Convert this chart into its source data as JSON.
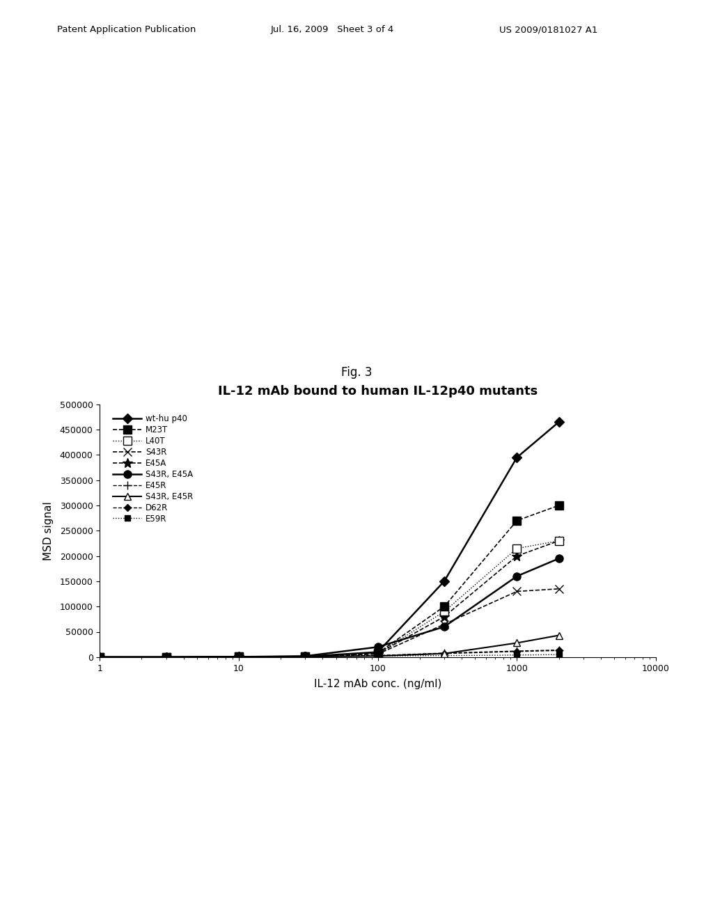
{
  "title": "IL-12 mAb bound to human IL-12p40 mutants",
  "xlabel": "IL-12 mAb conc. (ng/ml)",
  "ylabel": "MSD signal",
  "fig_label": "Fig. 3",
  "header_left": "Patent Application Publication",
  "header_mid": "Jul. 16, 2009   Sheet 3 of 4",
  "header_right": "US 2009/0181027 A1",
  "xlim": [
    1,
    10000
  ],
  "ylim": [
    0,
    500000
  ],
  "yticks": [
    0,
    50000,
    100000,
    150000,
    200000,
    250000,
    300000,
    350000,
    400000,
    450000,
    500000
  ],
  "series": [
    {
      "label": "wt-hu p40",
      "x": [
        1,
        3,
        10,
        30,
        100,
        300,
        1000,
        2000
      ],
      "y": [
        0,
        0,
        500,
        1000,
        10000,
        150000,
        395000,
        465000
      ],
      "color": "black",
      "marker": "D",
      "markersize": 7,
      "linewidth": 1.8,
      "linestyle": "-",
      "markerfacecolor": "black",
      "zorder": 10
    },
    {
      "label": "M23T",
      "x": [
        1,
        3,
        10,
        30,
        100,
        300,
        1000,
        2000
      ],
      "y": [
        0,
        0,
        500,
        1000,
        8000,
        100000,
        270000,
        300000
      ],
      "color": "black",
      "marker": "s",
      "markersize": 8,
      "linewidth": 1.2,
      "linestyle": "--",
      "markerfacecolor": "black",
      "zorder": 8
    },
    {
      "label": "L40T",
      "x": [
        1,
        3,
        10,
        30,
        100,
        300,
        1000,
        2000
      ],
      "y": [
        0,
        0,
        500,
        1000,
        7000,
        90000,
        215000,
        230000
      ],
      "color": "black",
      "marker": "s",
      "markersize": 8,
      "linewidth": 1.0,
      "linestyle": ":",
      "markerfacecolor": "white",
      "zorder": 7
    },
    {
      "label": "S43R",
      "x": [
        1,
        3,
        10,
        30,
        100,
        300,
        1000,
        2000
      ],
      "y": [
        0,
        0,
        500,
        1000,
        6000,
        65000,
        130000,
        135000
      ],
      "color": "black",
      "marker": "x",
      "markersize": 8,
      "linewidth": 1.2,
      "linestyle": "--",
      "markerfacecolor": "black",
      "zorder": 6
    },
    {
      "label": "E45A",
      "x": [
        1,
        3,
        10,
        30,
        100,
        300,
        1000,
        2000
      ],
      "y": [
        0,
        0,
        500,
        1000,
        7000,
        80000,
        200000,
        230000
      ],
      "color": "black",
      "marker": "*",
      "markersize": 10,
      "linewidth": 1.2,
      "linestyle": "--",
      "markerfacecolor": "black",
      "zorder": 6
    },
    {
      "label": "S43R, E45A",
      "x": [
        1,
        3,
        10,
        30,
        100,
        300,
        1000,
        2000
      ],
      "y": [
        0,
        0,
        500,
        2000,
        20000,
        60000,
        160000,
        195000
      ],
      "color": "black",
      "marker": "o",
      "markersize": 8,
      "linewidth": 1.8,
      "linestyle": "-",
      "markerfacecolor": "black",
      "zorder": 9
    },
    {
      "label": "E45R",
      "x": [
        1,
        3,
        10,
        30,
        100,
        300,
        1000,
        2000
      ],
      "y": [
        0,
        0,
        500,
        1000,
        3000,
        8000,
        12000,
        14000
      ],
      "color": "black",
      "marker": "+",
      "markersize": 8,
      "linewidth": 1.0,
      "linestyle": "--",
      "markerfacecolor": "black",
      "zorder": 5
    },
    {
      "label": "S43R, E45R",
      "x": [
        1,
        3,
        10,
        30,
        100,
        300,
        1000,
        2000
      ],
      "y": [
        0,
        0,
        500,
        1000,
        2000,
        7000,
        28000,
        43000
      ],
      "color": "black",
      "marker": "^",
      "markersize": 7,
      "linewidth": 1.5,
      "linestyle": "-",
      "markerfacecolor": "white",
      "zorder": 6
    },
    {
      "label": "D62R",
      "x": [
        1,
        3,
        10,
        30,
        100,
        300,
        1000,
        2000
      ],
      "y": [
        0,
        0,
        500,
        1000,
        3000,
        7000,
        11000,
        13000
      ],
      "color": "black",
      "marker": "D",
      "markersize": 5,
      "linewidth": 1.0,
      "linestyle": "--",
      "markerfacecolor": "black",
      "zorder": 5
    },
    {
      "label": "E59R",
      "x": [
        1,
        3,
        10,
        30,
        100,
        300,
        1000,
        2000
      ],
      "y": [
        0,
        0,
        500,
        1000,
        2000,
        3000,
        4000,
        5000
      ],
      "color": "black",
      "marker": "s",
      "markersize": 6,
      "linewidth": 1.0,
      "linestyle": ":",
      "markerfacecolor": "black",
      "zorder": 4
    }
  ]
}
